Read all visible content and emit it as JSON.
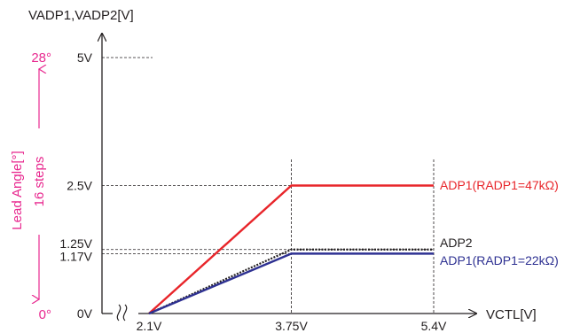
{
  "chart_data": {
    "type": "line",
    "ylabel": "VADP1,VADP2[V]",
    "xlabel": "VCTL[V]",
    "x_ticks": [
      "2.1V",
      "3.75V",
      "5.4V"
    ],
    "x_tick_values": [
      2.1,
      3.75,
      5.4
    ],
    "y_ticks": [
      {
        "label": "0V",
        "value": 0
      },
      {
        "label": "1.17V",
        "value": 1.17
      },
      {
        "label": "1.25V",
        "value": 1.25
      },
      {
        "label": "2.5V",
        "value": 2.5
      },
      {
        "label": "5V",
        "value": 5
      }
    ],
    "axis_break": "≈",
    "secondary_axis": {
      "label": "Lead Angle[°]",
      "top_label": "28°",
      "bottom_label": "0°",
      "span_label": "16 steps",
      "color": "#e8288f"
    },
    "series": [
      {
        "name": "ADP1(RADP1=47kΩ)",
        "color": "#e8252a",
        "style": "solid",
        "x": [
          2.1,
          3.75,
          5.4
        ],
        "y": [
          0,
          2.5,
          2.5
        ]
      },
      {
        "name": "ADP2",
        "color": "#231f20",
        "style": "dotted",
        "x": [
          2.1,
          3.75,
          5.4
        ],
        "y": [
          0,
          1.25,
          1.25
        ]
      },
      {
        "name": "ADP1(RADP1=22kΩ)",
        "color": "#2e3192",
        "style": "solid",
        "x": [
          2.1,
          3.75,
          5.4
        ],
        "y": [
          0,
          1.17,
          1.17
        ]
      }
    ]
  }
}
